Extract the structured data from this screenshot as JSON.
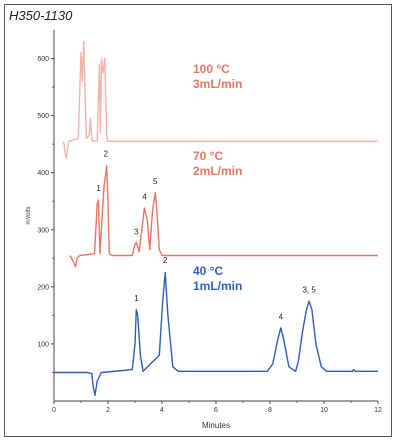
{
  "figure_id": "H350-1130",
  "chart_data": {
    "type": "line",
    "title": "",
    "xlabel": "Minutes",
    "ylabel": "mVolts",
    "xlim": [
      0,
      12
    ],
    "ylim": [
      0,
      650
    ],
    "x_ticks": [
      0,
      2,
      4,
      6,
      8,
      10,
      12
    ],
    "y_ticks": [
      100,
      200,
      300,
      400,
      500,
      600
    ],
    "grid": false,
    "series": [
      {
        "color": "#2e5fb6",
        "label_lines": [
          "40 °C",
          "1mL/min"
        ],
        "label_color": "#2e5fb6",
        "x": [
          0,
          1.25,
          1.4,
          1.45,
          1.52,
          1.6,
          1.75,
          2.9,
          3.0,
          3.05,
          3.1,
          3.2,
          3.3,
          3.9,
          4.02,
          4.12,
          4.22,
          4.4,
          4.6,
          7.9,
          8.1,
          8.3,
          8.4,
          8.5,
          8.7,
          8.95,
          9.05,
          9.2,
          9.35,
          9.45,
          9.55,
          9.7,
          9.9,
          10.1,
          11.05,
          11.1,
          11.15,
          12
        ],
        "y": [
          50,
          50,
          48,
          25,
          10,
          35,
          50,
          55,
          100,
          160,
          150,
          80,
          52,
          80,
          170,
          225,
          150,
          60,
          52,
          52,
          65,
          110,
          128,
          110,
          60,
          52,
          70,
          120,
          160,
          175,
          160,
          100,
          60,
          52,
          52,
          55,
          52,
          52
        ]
      },
      {
        "color": "#e57764",
        "label_lines": [
          "70 °C",
          "2mL/min"
        ],
        "label_color": "#e57764",
        "x": [
          0.6,
          0.75,
          0.8,
          0.85,
          0.95,
          1.5,
          1.6,
          1.65,
          1.7,
          1.85,
          1.95,
          2.0,
          2.05,
          2.15,
          2.9,
          3.0,
          3.05,
          3.15,
          3.25,
          3.35,
          3.45,
          3.55,
          3.65,
          3.75,
          3.8,
          3.9,
          4.0,
          12
        ],
        "y": [
          255,
          240,
          235,
          250,
          255,
          258,
          345,
          352,
          258,
          375,
          412,
          350,
          258,
          255,
          255,
          275,
          278,
          262,
          300,
          338,
          318,
          265,
          335,
          365,
          340,
          265,
          255,
          255
        ]
      },
      {
        "color": "#f3b3a6",
        "label_lines": [
          "100 °C",
          "3mL/min"
        ],
        "label_color": "#e57764",
        "x": [
          0.35,
          0.4,
          0.45,
          0.5,
          0.55,
          0.9,
          0.95,
          1.0,
          1.05,
          1.1,
          1.15,
          1.2,
          1.3,
          1.35,
          1.4,
          1.45,
          1.6,
          1.68,
          1.72,
          1.76,
          1.82,
          1.88,
          1.95,
          2.0,
          12
        ],
        "y": [
          455,
          440,
          425,
          440,
          455,
          460,
          540,
          610,
          560,
          630,
          545,
          460,
          465,
          495,
          458,
          455,
          455,
          590,
          470,
          600,
          575,
          600,
          465,
          455,
          455
        ]
      }
    ],
    "peak_labels": [
      {
        "text": "1",
        "x": 3.05,
        "y": 175
      },
      {
        "text": "2",
        "x": 4.12,
        "y": 242
      },
      {
        "text": "4",
        "x": 8.4,
        "y": 143
      },
      {
        "text": "3, 5",
        "x": 9.45,
        "y": 190
      },
      {
        "text": "1",
        "x": 1.65,
        "y": 368
      },
      {
        "text": "2",
        "x": 1.92,
        "y": 428
      },
      {
        "text": "3",
        "x": 3.05,
        "y": 292
      },
      {
        "text": "4",
        "x": 3.35,
        "y": 353
      },
      {
        "text": "5",
        "x": 3.75,
        "y": 380
      }
    ]
  }
}
